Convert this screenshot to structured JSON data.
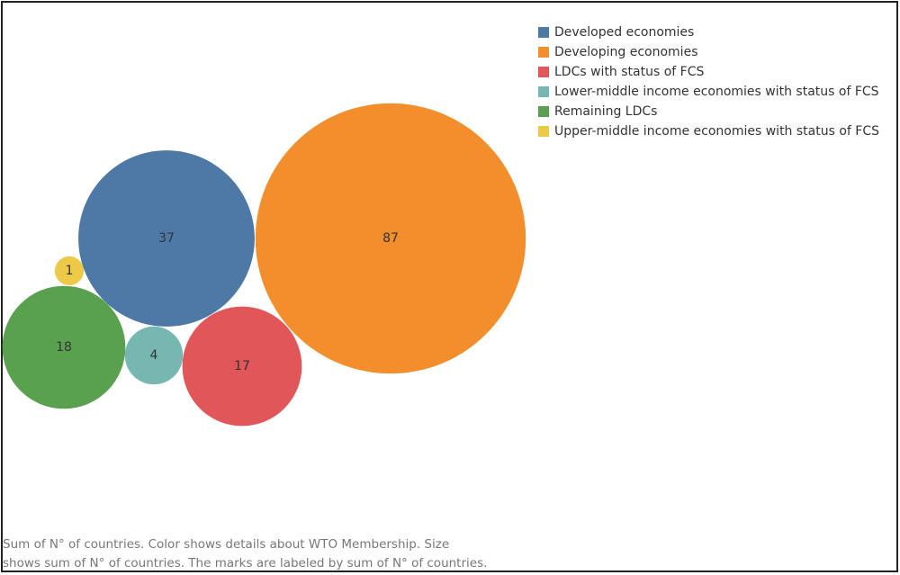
{
  "chart_data": {
    "type": "packed-bubble",
    "categories": [
      "Developed economies",
      "Developing economies",
      "LDCs with  status of FCS",
      "Lower-middle income economies with status of FCS",
      "Remaining LDCs",
      "Upper-middle income economies with status of FCS"
    ],
    "values": [
      37,
      87,
      17,
      4,
      18,
      1
    ],
    "colors": [
      "#4e79a7",
      "#f28e2b",
      "#e15759",
      "#76b7b2",
      "#59a14f",
      "#edc948"
    ],
    "caption": [
      "Sum of N° of countries.  Color shows details about WTO Membership.  Size",
      "shows sum of N° of countries.  The marks are labeled by sum of N° of countries."
    ]
  }
}
